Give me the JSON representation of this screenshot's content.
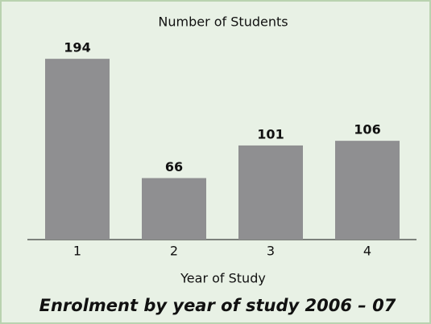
{
  "chart_data": {
    "type": "bar",
    "title": "Number of Students",
    "categories": [
      "1",
      "2",
      "3",
      "4"
    ],
    "values": [
      194,
      66,
      101,
      106
    ],
    "color": "#8f8f91",
    "xlabel": "Year of Study",
    "caption": "Enrolment by year of study 2006 – 07",
    "ylim": [
      0,
      220
    ]
  }
}
